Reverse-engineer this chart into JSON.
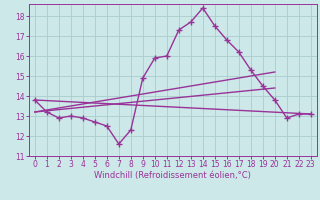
{
  "xlabel": "Windchill (Refroidissement éolien,°C)",
  "bg_color": "#cce8e8",
  "grid_color": "#aacccc",
  "line_color": "#993399",
  "xlim": [
    -0.5,
    23.5
  ],
  "ylim": [
    11,
    18.6
  ],
  "yticks": [
    11,
    12,
    13,
    14,
    15,
    16,
    17,
    18
  ],
  "xticks": [
    0,
    1,
    2,
    3,
    4,
    5,
    6,
    7,
    8,
    9,
    10,
    11,
    12,
    13,
    14,
    15,
    16,
    17,
    18,
    19,
    20,
    21,
    22,
    23
  ],
  "series1_x": [
    0,
    1,
    2,
    3,
    4,
    5,
    6,
    7,
    8,
    9,
    10,
    11,
    12,
    13,
    14,
    15,
    16,
    17,
    18,
    19,
    20,
    21,
    22,
    23
  ],
  "series1_y": [
    13.8,
    13.2,
    12.9,
    13.0,
    12.9,
    12.7,
    12.5,
    11.6,
    12.3,
    14.9,
    15.9,
    16.0,
    17.3,
    17.7,
    18.4,
    17.5,
    16.8,
    16.2,
    15.3,
    14.5,
    13.8,
    12.9,
    13.1,
    13.1
  ],
  "series2_x": [
    0,
    23
  ],
  "series2_y": [
    13.8,
    13.1
  ],
  "series3_x": [
    0,
    20
  ],
  "series3_y": [
    13.2,
    15.2
  ],
  "series4_x": [
    0,
    20
  ],
  "series4_y": [
    13.2,
    14.4
  ],
  "marker": "+",
  "marker_size": 4,
  "marker_lw": 1.0,
  "line_width": 1.0,
  "tick_fontsize": 5.5,
  "label_fontsize": 6.0
}
